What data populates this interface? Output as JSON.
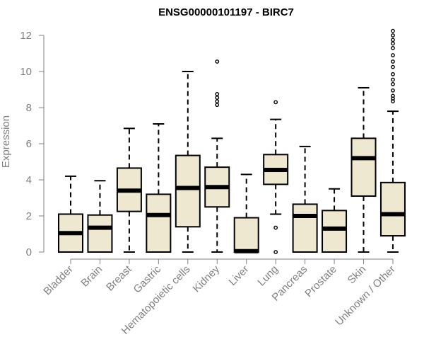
{
  "chart_data": {
    "type": "boxplot",
    "title": "ENSG00000101197 - BIRC7",
    "xlabel": "",
    "ylabel": "Expression",
    "ylim": [
      0,
      12
    ],
    "yticks": [
      0,
      2,
      4,
      6,
      8,
      10,
      12
    ],
    "grid": false,
    "box_fill": "#efe8d0",
    "box_stroke": "#000000",
    "axis_color": "#808080",
    "categories": [
      "Bladder",
      "Brain",
      "Breast",
      "Gastric",
      "Hematopoietic cells",
      "Kidney",
      "Liver",
      "Lung",
      "Pancreas",
      "Prostate",
      "Skin",
      "Unknown / Other"
    ],
    "boxes": [
      {
        "category": "Bladder",
        "whisker_low": 0.0,
        "q1": 0.0,
        "median": 1.05,
        "q3": 2.1,
        "whisker_high": 4.2,
        "outliers": []
      },
      {
        "category": "Brain",
        "whisker_low": 0.0,
        "q1": 0.0,
        "median": 1.35,
        "q3": 2.05,
        "whisker_high": 3.95,
        "outliers": []
      },
      {
        "category": "Breast",
        "whisker_low": 0.0,
        "q1": 2.25,
        "median": 3.4,
        "q3": 4.65,
        "whisker_high": 6.85,
        "outliers": []
      },
      {
        "category": "Gastric",
        "whisker_low": 0.0,
        "q1": 0.0,
        "median": 2.05,
        "q3": 3.2,
        "whisker_high": 7.1,
        "outliers": []
      },
      {
        "category": "Hematopoietic cells",
        "whisker_low": 0.0,
        "q1": 1.4,
        "median": 3.55,
        "q3": 5.35,
        "whisker_high": 10.0,
        "outliers": []
      },
      {
        "category": "Kidney",
        "whisker_low": 0.0,
        "q1": 2.5,
        "median": 3.6,
        "q3": 4.7,
        "whisker_high": 6.3,
        "outliers": [
          8.15,
          8.35,
          8.55,
          8.75,
          10.55
        ]
      },
      {
        "category": "Liver",
        "whisker_low": 0.0,
        "q1": 0.0,
        "median": 0.05,
        "q3": 1.9,
        "whisker_high": 4.3,
        "outliers": []
      },
      {
        "category": "Lung",
        "whisker_low": 2.1,
        "q1": 3.75,
        "median": 4.55,
        "q3": 5.4,
        "whisker_high": 7.35,
        "outliers": [
          0.0,
          1.35,
          8.3
        ]
      },
      {
        "category": "Pancreas",
        "whisker_low": 0.0,
        "q1": 0.0,
        "median": 2.0,
        "q3": 2.65,
        "whisker_high": 5.85,
        "outliers": []
      },
      {
        "category": "Prostate",
        "whisker_low": 0.0,
        "q1": 0.0,
        "median": 1.3,
        "q3": 2.3,
        "whisker_high": 3.5,
        "outliers": []
      },
      {
        "category": "Skin",
        "whisker_low": 0.0,
        "q1": 3.1,
        "median": 5.2,
        "q3": 6.3,
        "whisker_high": 9.1,
        "outliers": []
      },
      {
        "category": "Unknown / Other",
        "whisker_low": 0.0,
        "q1": 0.9,
        "median": 2.1,
        "q3": 3.85,
        "whisker_high": 7.8,
        "outliers": [
          8.35,
          8.5,
          8.65,
          8.95,
          9.3,
          9.55,
          9.85,
          10.25,
          10.55,
          10.9,
          11.3,
          11.55,
          11.75,
          12.0,
          12.25
        ]
      }
    ]
  }
}
